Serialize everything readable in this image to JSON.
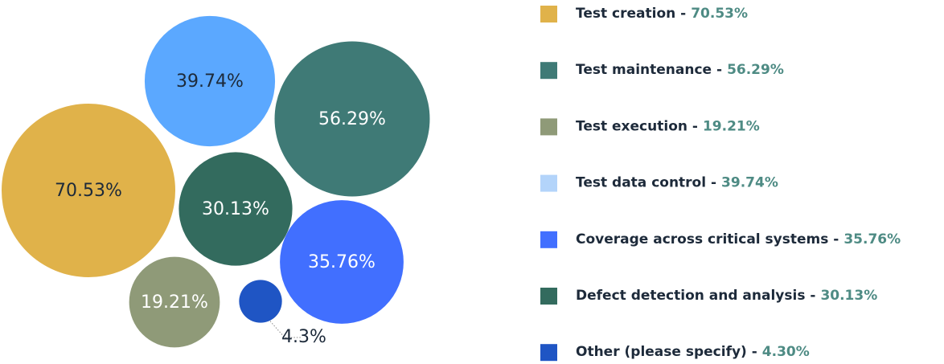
{
  "chart_data": {
    "type": "bubble",
    "categories": [
      "Test creation -",
      "Test maintenance -",
      "Test execution -",
      "Test data control -",
      "Coverage across critical systems -",
      "Defect detection and analysis  -",
      "Other (please specify) -"
    ],
    "values": [
      70.53,
      56.29,
      19.21,
      39.74,
      35.76,
      30.13,
      4.3
    ],
    "value_labels": [
      "70.53%",
      "56.29%",
      "19.21%",
      "39.74%",
      "35.76%",
      "30.13%",
      "4.3%"
    ],
    "legend_values": [
      "70.53%",
      "56.29%",
      "19.21%",
      "39.74%",
      "35.76%",
      "30.13%",
      "4.30%"
    ],
    "colors": [
      "#e0b24a",
      "#3f7a76",
      "#8f9a78",
      "#5ba8ff",
      "#416fff",
      "#336b5e",
      "#1f55c4"
    ],
    "legend_colors": [
      "#e0b24a",
      "#3f7a76",
      "#8f9a78",
      "#b3d4fa",
      "#416fff",
      "#336b5e",
      "#1f55c4"
    ]
  }
}
